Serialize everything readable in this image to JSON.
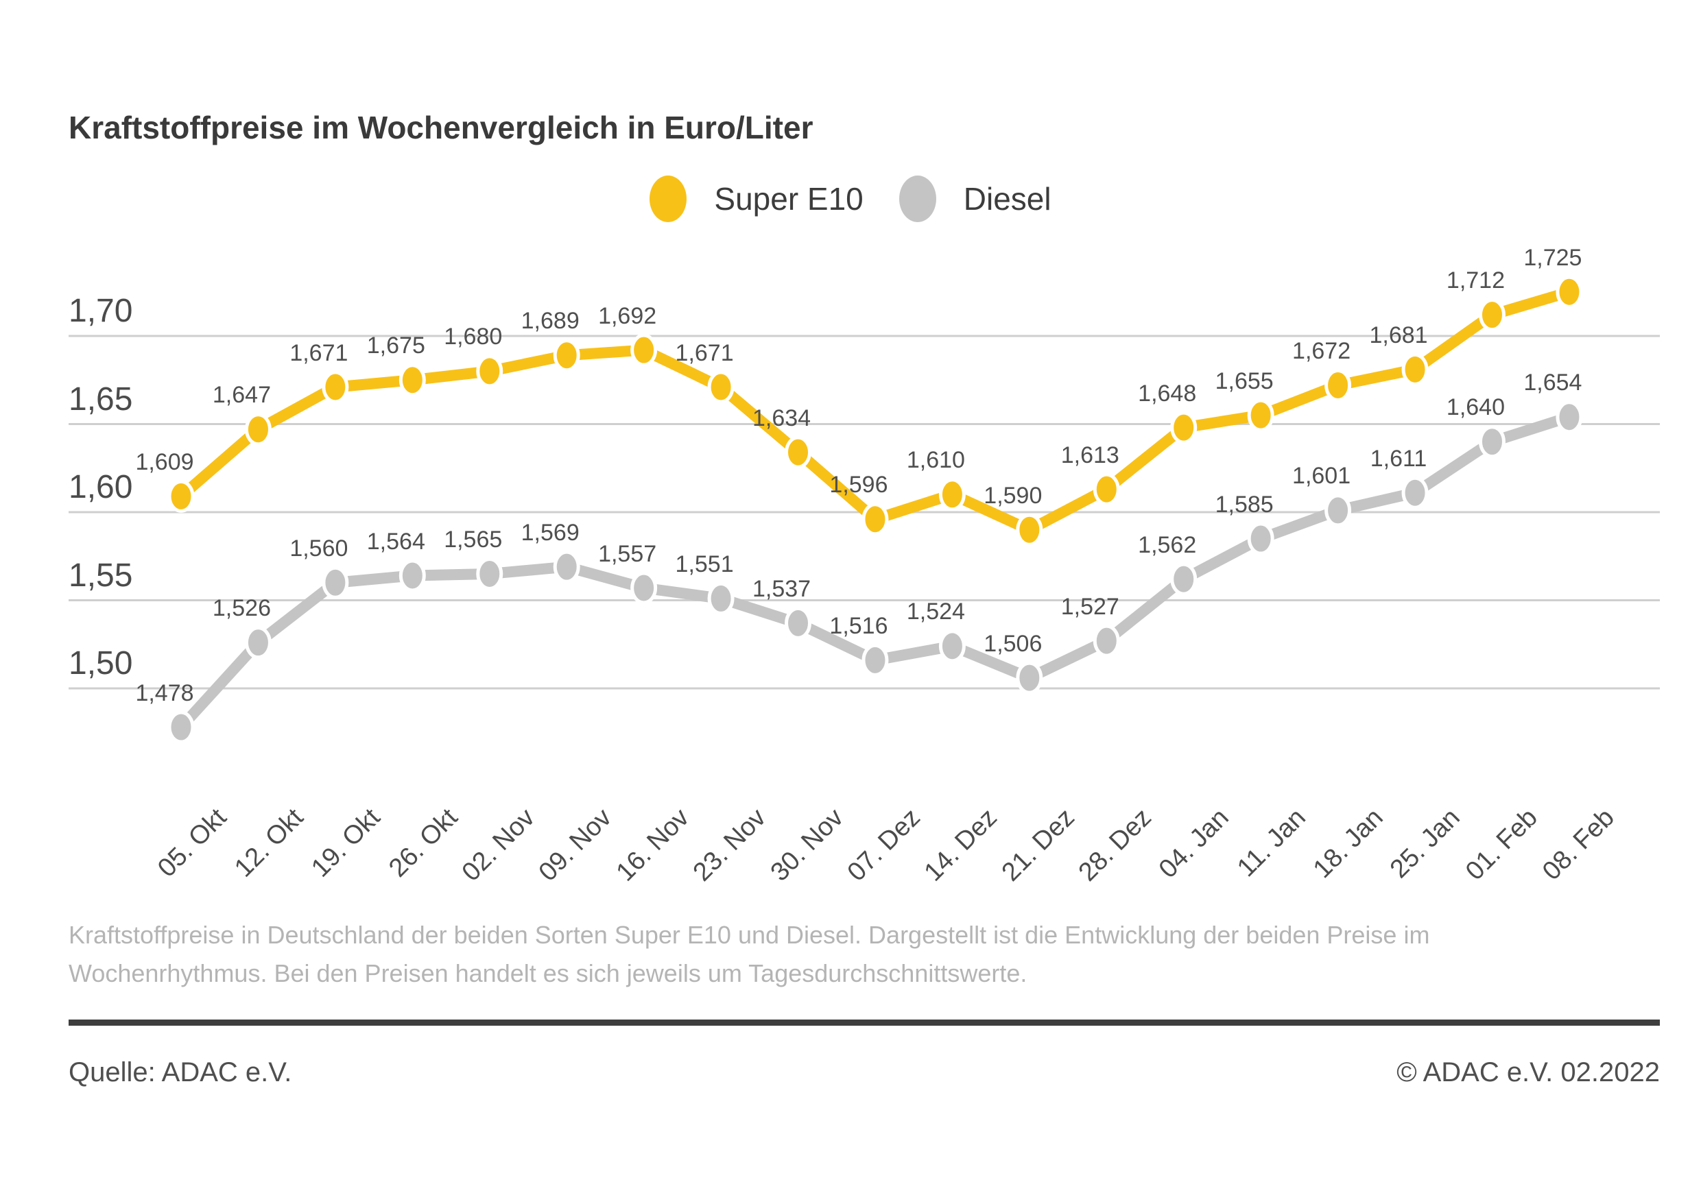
{
  "title": "Kraftstoffpreise im Wochenvergleich in Euro/Liter",
  "legend": [
    {
      "label": "Super E10",
      "color": "#f8c117"
    },
    {
      "label": "Diesel",
      "color": "#c4c4c4"
    }
  ],
  "colors": {
    "super_e10": "#f8c117",
    "diesel": "#c4c4c4",
    "gridline": "#cfcfcf",
    "marker_ring": "#ffffff",
    "text_dark": "#3a3a3a",
    "text_medium": "#4b4b4b",
    "text_light": "#b4b4b4",
    "divider": "#3e3e3e"
  },
  "chart_data": {
    "type": "line",
    "title": "Kraftstoffpreise im Wochenvergleich in Euro/Liter",
    "xlabel": "",
    "ylabel": "Euro/Liter",
    "ylim": [
      1.45,
      1.74
    ],
    "grid": true,
    "legend_position": "top-center",
    "categories": [
      "05. Okt",
      "12. Okt",
      "19. Okt",
      "26. Okt",
      "02. Nov",
      "09. Nov",
      "16. Nov",
      "23. Nov",
      "30. Nov",
      "07. Dez",
      "14. Dez",
      "21. Dez",
      "28. Dez",
      "04. Jan",
      "11. Jan",
      "18. Jan",
      "25. Jan",
      "01. Feb",
      "08. Feb"
    ],
    "yticks": [
      {
        "label": "1,70",
        "value": 1.7
      },
      {
        "label": "1,65",
        "value": 1.65
      },
      {
        "label": "1,60",
        "value": 1.6
      },
      {
        "label": "1,55",
        "value": 1.55
      },
      {
        "label": "1,50",
        "value": 1.5
      }
    ],
    "series": [
      {
        "name": "Super E10",
        "color": "#f8c117",
        "values": [
          1.609,
          1.647,
          1.671,
          1.675,
          1.68,
          1.689,
          1.692,
          1.671,
          1.634,
          1.596,
          1.61,
          1.59,
          1.613,
          1.648,
          1.655,
          1.672,
          1.681,
          1.712,
          1.725
        ],
        "labels": [
          "1,609",
          "1,647",
          "1,671",
          "1,675",
          "1,680",
          "1,689",
          "1,692",
          "1,671",
          "1,634",
          "1,596",
          "1,610",
          "1,590",
          "1,613",
          "1,648",
          "1,655",
          "1,672",
          "1,681",
          "1,712",
          "1,725"
        ]
      },
      {
        "name": "Diesel",
        "color": "#c4c4c4",
        "values": [
          1.478,
          1.526,
          1.56,
          1.564,
          1.565,
          1.569,
          1.557,
          1.551,
          1.537,
          1.516,
          1.524,
          1.506,
          1.527,
          1.562,
          1.585,
          1.601,
          1.611,
          1.64,
          1.654
        ],
        "labels": [
          "1,478",
          "1,526",
          "1,560",
          "1,564",
          "1,565",
          "1,569",
          "1,557",
          "1,551",
          "1,537",
          "1,516",
          "1,524",
          "1,506",
          "1,527",
          "1,562",
          "1,585",
          "1,601",
          "1,611",
          "1,640",
          "1,654"
        ]
      }
    ]
  },
  "footer": {
    "line1": "Kraftstoffpreise in Deutschland der beiden Sorten Super E10 und Diesel. Dargestellt ist die Entwicklung der beiden Preise im",
    "line2": "Wochenrhythmus. Bei den Preisen handelt es sich jeweils um Tagesdurchschnittswerte.",
    "source": "Quelle: ADAC e.V.",
    "copyright": "© ADAC e.V. 02.2022"
  }
}
